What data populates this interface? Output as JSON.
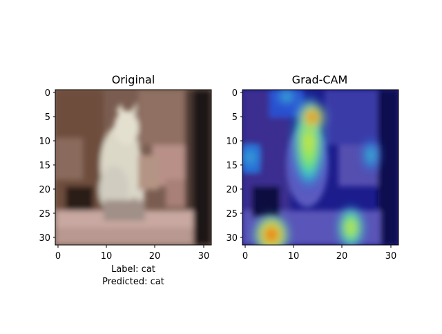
{
  "panels": [
    {
      "title": "Original",
      "x_ticks": [
        "0",
        "10",
        "20",
        "30"
      ],
      "y_ticks": [
        "0",
        "5",
        "10",
        "15",
        "20",
        "25",
        "30"
      ],
      "xlabel_lines": [
        "Label: cat",
        "Predicted: cat"
      ]
    },
    {
      "title": "Grad-CAM",
      "x_ticks": [
        "0",
        "10",
        "20",
        "30"
      ],
      "y_ticks": [
        "0",
        "5",
        "10",
        "15",
        "20",
        "25",
        "30"
      ]
    }
  ],
  "image": {
    "pixels_per_side": 32,
    "subject": "blurry low-resolution photo of a white cat",
    "heatmap_colormap": "jet",
    "overlay": "Grad-CAM heatmap over the same image"
  },
  "colors": {
    "axis": "#000000",
    "background": "#ffffff"
  }
}
